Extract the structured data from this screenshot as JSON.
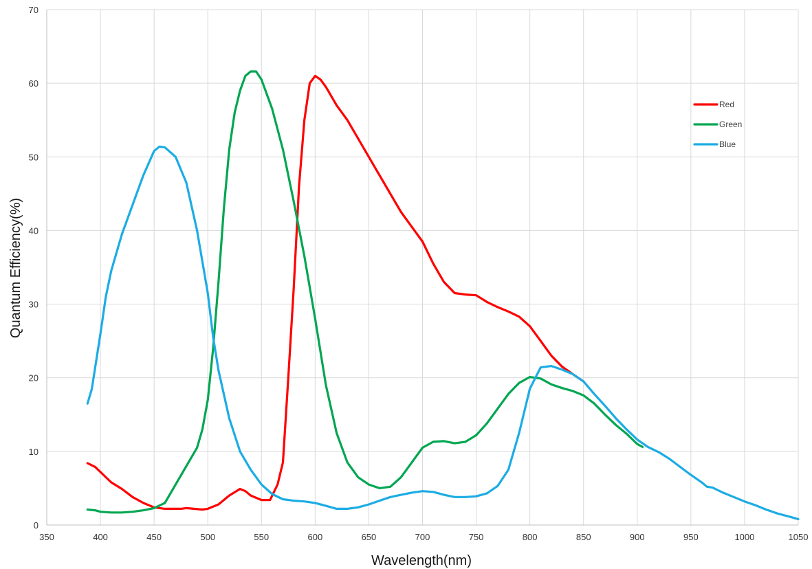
{
  "chart_data": {
    "type": "line",
    "xlabel": "Wavelength(nm)",
    "ylabel": "Quantum Efficiency(%)",
    "xlim": [
      350,
      1050
    ],
    "ylim": [
      0,
      70
    ],
    "x_ticks": [
      350,
      400,
      450,
      500,
      550,
      600,
      650,
      700,
      750,
      800,
      850,
      900,
      950,
      1000,
      1050
    ],
    "y_ticks": [
      0,
      10,
      20,
      30,
      40,
      50,
      60,
      70
    ],
    "grid": true,
    "legend_position": "top-right",
    "series": [
      {
        "name": "Red",
        "color": "#ff0000",
        "points": [
          [
            388,
            8.4
          ],
          [
            395,
            7.9
          ],
          [
            400,
            7.2
          ],
          [
            410,
            5.8
          ],
          [
            420,
            4.9
          ],
          [
            430,
            3.8
          ],
          [
            440,
            3.0
          ],
          [
            450,
            2.4
          ],
          [
            460,
            2.2
          ],
          [
            475,
            2.2
          ],
          [
            480,
            2.3
          ],
          [
            495,
            2.1
          ],
          [
            500,
            2.2
          ],
          [
            510,
            2.8
          ],
          [
            520,
            4.0
          ],
          [
            530,
            4.9
          ],
          [
            535,
            4.6
          ],
          [
            540,
            4.0
          ],
          [
            550,
            3.4
          ],
          [
            558,
            3.4
          ],
          [
            565,
            5.5
          ],
          [
            570,
            8.5
          ],
          [
            575,
            20
          ],
          [
            580,
            32
          ],
          [
            585,
            46
          ],
          [
            590,
            55
          ],
          [
            595,
            60
          ],
          [
            600,
            61.0
          ],
          [
            605,
            60.5
          ],
          [
            610,
            59.5
          ],
          [
            620,
            57.0
          ],
          [
            630,
            55.0
          ],
          [
            640,
            52.5
          ],
          [
            650,
            50.0
          ],
          [
            660,
            47.5
          ],
          [
            670,
            45.0
          ],
          [
            680,
            42.5
          ],
          [
            690,
            40.5
          ],
          [
            700,
            38.5
          ],
          [
            710,
            35.5
          ],
          [
            720,
            33.0
          ],
          [
            730,
            31.5
          ],
          [
            740,
            31.3
          ],
          [
            750,
            31.2
          ],
          [
            760,
            30.3
          ],
          [
            770,
            29.6
          ],
          [
            780,
            29.0
          ],
          [
            790,
            28.3
          ],
          [
            800,
            27.0
          ],
          [
            810,
            25.0
          ],
          [
            820,
            23.0
          ],
          [
            830,
            21.5
          ],
          [
            840,
            20.5
          ],
          [
            850,
            19.5
          ]
        ]
      },
      {
        "name": "Green",
        "color": "#00a651",
        "points": [
          [
            388,
            2.1
          ],
          [
            395,
            2.0
          ],
          [
            400,
            1.8
          ],
          [
            410,
            1.7
          ],
          [
            420,
            1.7
          ],
          [
            430,
            1.8
          ],
          [
            440,
            2.0
          ],
          [
            450,
            2.3
          ],
          [
            460,
            3.0
          ],
          [
            470,
            5.5
          ],
          [
            480,
            8.0
          ],
          [
            490,
            10.5
          ],
          [
            495,
            13
          ],
          [
            500,
            17
          ],
          [
            505,
            24
          ],
          [
            510,
            33
          ],
          [
            515,
            43
          ],
          [
            520,
            51
          ],
          [
            525,
            56
          ],
          [
            530,
            59
          ],
          [
            535,
            61
          ],
          [
            540,
            61.6
          ],
          [
            545,
            61.6
          ],
          [
            550,
            60.5
          ],
          [
            560,
            56.5
          ],
          [
            570,
            51.0
          ],
          [
            580,
            44.0
          ],
          [
            590,
            36.5
          ],
          [
            600,
            28.0
          ],
          [
            610,
            19.0
          ],
          [
            620,
            12.5
          ],
          [
            630,
            8.5
          ],
          [
            640,
            6.5
          ],
          [
            650,
            5.5
          ],
          [
            660,
            5.0
          ],
          [
            670,
            5.2
          ],
          [
            680,
            6.5
          ],
          [
            690,
            8.5
          ],
          [
            700,
            10.5
          ],
          [
            710,
            11.3
          ],
          [
            720,
            11.4
          ],
          [
            730,
            11.1
          ],
          [
            740,
            11.3
          ],
          [
            750,
            12.2
          ],
          [
            760,
            13.8
          ],
          [
            770,
            15.8
          ],
          [
            780,
            17.8
          ],
          [
            790,
            19.3
          ],
          [
            800,
            20.1
          ],
          [
            810,
            19.9
          ],
          [
            820,
            19.1
          ],
          [
            830,
            18.6
          ],
          [
            840,
            18.2
          ],
          [
            850,
            17.6
          ],
          [
            860,
            16.5
          ],
          [
            870,
            15.0
          ],
          [
            880,
            13.6
          ],
          [
            890,
            12.4
          ],
          [
            900,
            11.0
          ],
          [
            905,
            10.6
          ]
        ]
      },
      {
        "name": "Blue",
        "color": "#1cace4",
        "points": [
          [
            388,
            16.5
          ],
          [
            392,
            18.5
          ],
          [
            400,
            26
          ],
          [
            405,
            31
          ],
          [
            410,
            34.5
          ],
          [
            420,
            39.5
          ],
          [
            430,
            43.5
          ],
          [
            440,
            47.5
          ],
          [
            450,
            50.8
          ],
          [
            455,
            51.4
          ],
          [
            460,
            51.3
          ],
          [
            470,
            50.0
          ],
          [
            480,
            46.5
          ],
          [
            490,
            40.0
          ],
          [
            500,
            31.5
          ],
          [
            505,
            25.5
          ],
          [
            510,
            21.0
          ],
          [
            520,
            14.5
          ],
          [
            530,
            10.0
          ],
          [
            540,
            7.5
          ],
          [
            550,
            5.5
          ],
          [
            560,
            4.2
          ],
          [
            570,
            3.5
          ],
          [
            580,
            3.3
          ],
          [
            590,
            3.2
          ],
          [
            600,
            3.0
          ],
          [
            610,
            2.6
          ],
          [
            620,
            2.2
          ],
          [
            630,
            2.2
          ],
          [
            640,
            2.4
          ],
          [
            650,
            2.8
          ],
          [
            660,
            3.3
          ],
          [
            670,
            3.8
          ],
          [
            680,
            4.1
          ],
          [
            690,
            4.4
          ],
          [
            700,
            4.6
          ],
          [
            710,
            4.5
          ],
          [
            720,
            4.1
          ],
          [
            730,
            3.8
          ],
          [
            740,
            3.8
          ],
          [
            750,
            3.9
          ],
          [
            760,
            4.3
          ],
          [
            770,
            5.3
          ],
          [
            780,
            7.5
          ],
          [
            790,
            12.5
          ],
          [
            800,
            18.5
          ],
          [
            810,
            21.4
          ],
          [
            820,
            21.6
          ],
          [
            830,
            21.1
          ],
          [
            840,
            20.5
          ],
          [
            850,
            19.5
          ],
          [
            860,
            17.8
          ],
          [
            870,
            16.2
          ],
          [
            880,
            14.5
          ],
          [
            890,
            13.0
          ],
          [
            900,
            11.6
          ],
          [
            910,
            10.6
          ],
          [
            920,
            9.9
          ],
          [
            930,
            9.0
          ],
          [
            940,
            7.9
          ],
          [
            950,
            6.8
          ],
          [
            960,
            5.8
          ],
          [
            965,
            5.2
          ],
          [
            970,
            5.1
          ],
          [
            980,
            4.4
          ],
          [
            990,
            3.8
          ],
          [
            1000,
            3.2
          ],
          [
            1010,
            2.7
          ],
          [
            1020,
            2.1
          ],
          [
            1030,
            1.6
          ],
          [
            1040,
            1.2
          ],
          [
            1050,
            0.8
          ]
        ]
      }
    ]
  }
}
